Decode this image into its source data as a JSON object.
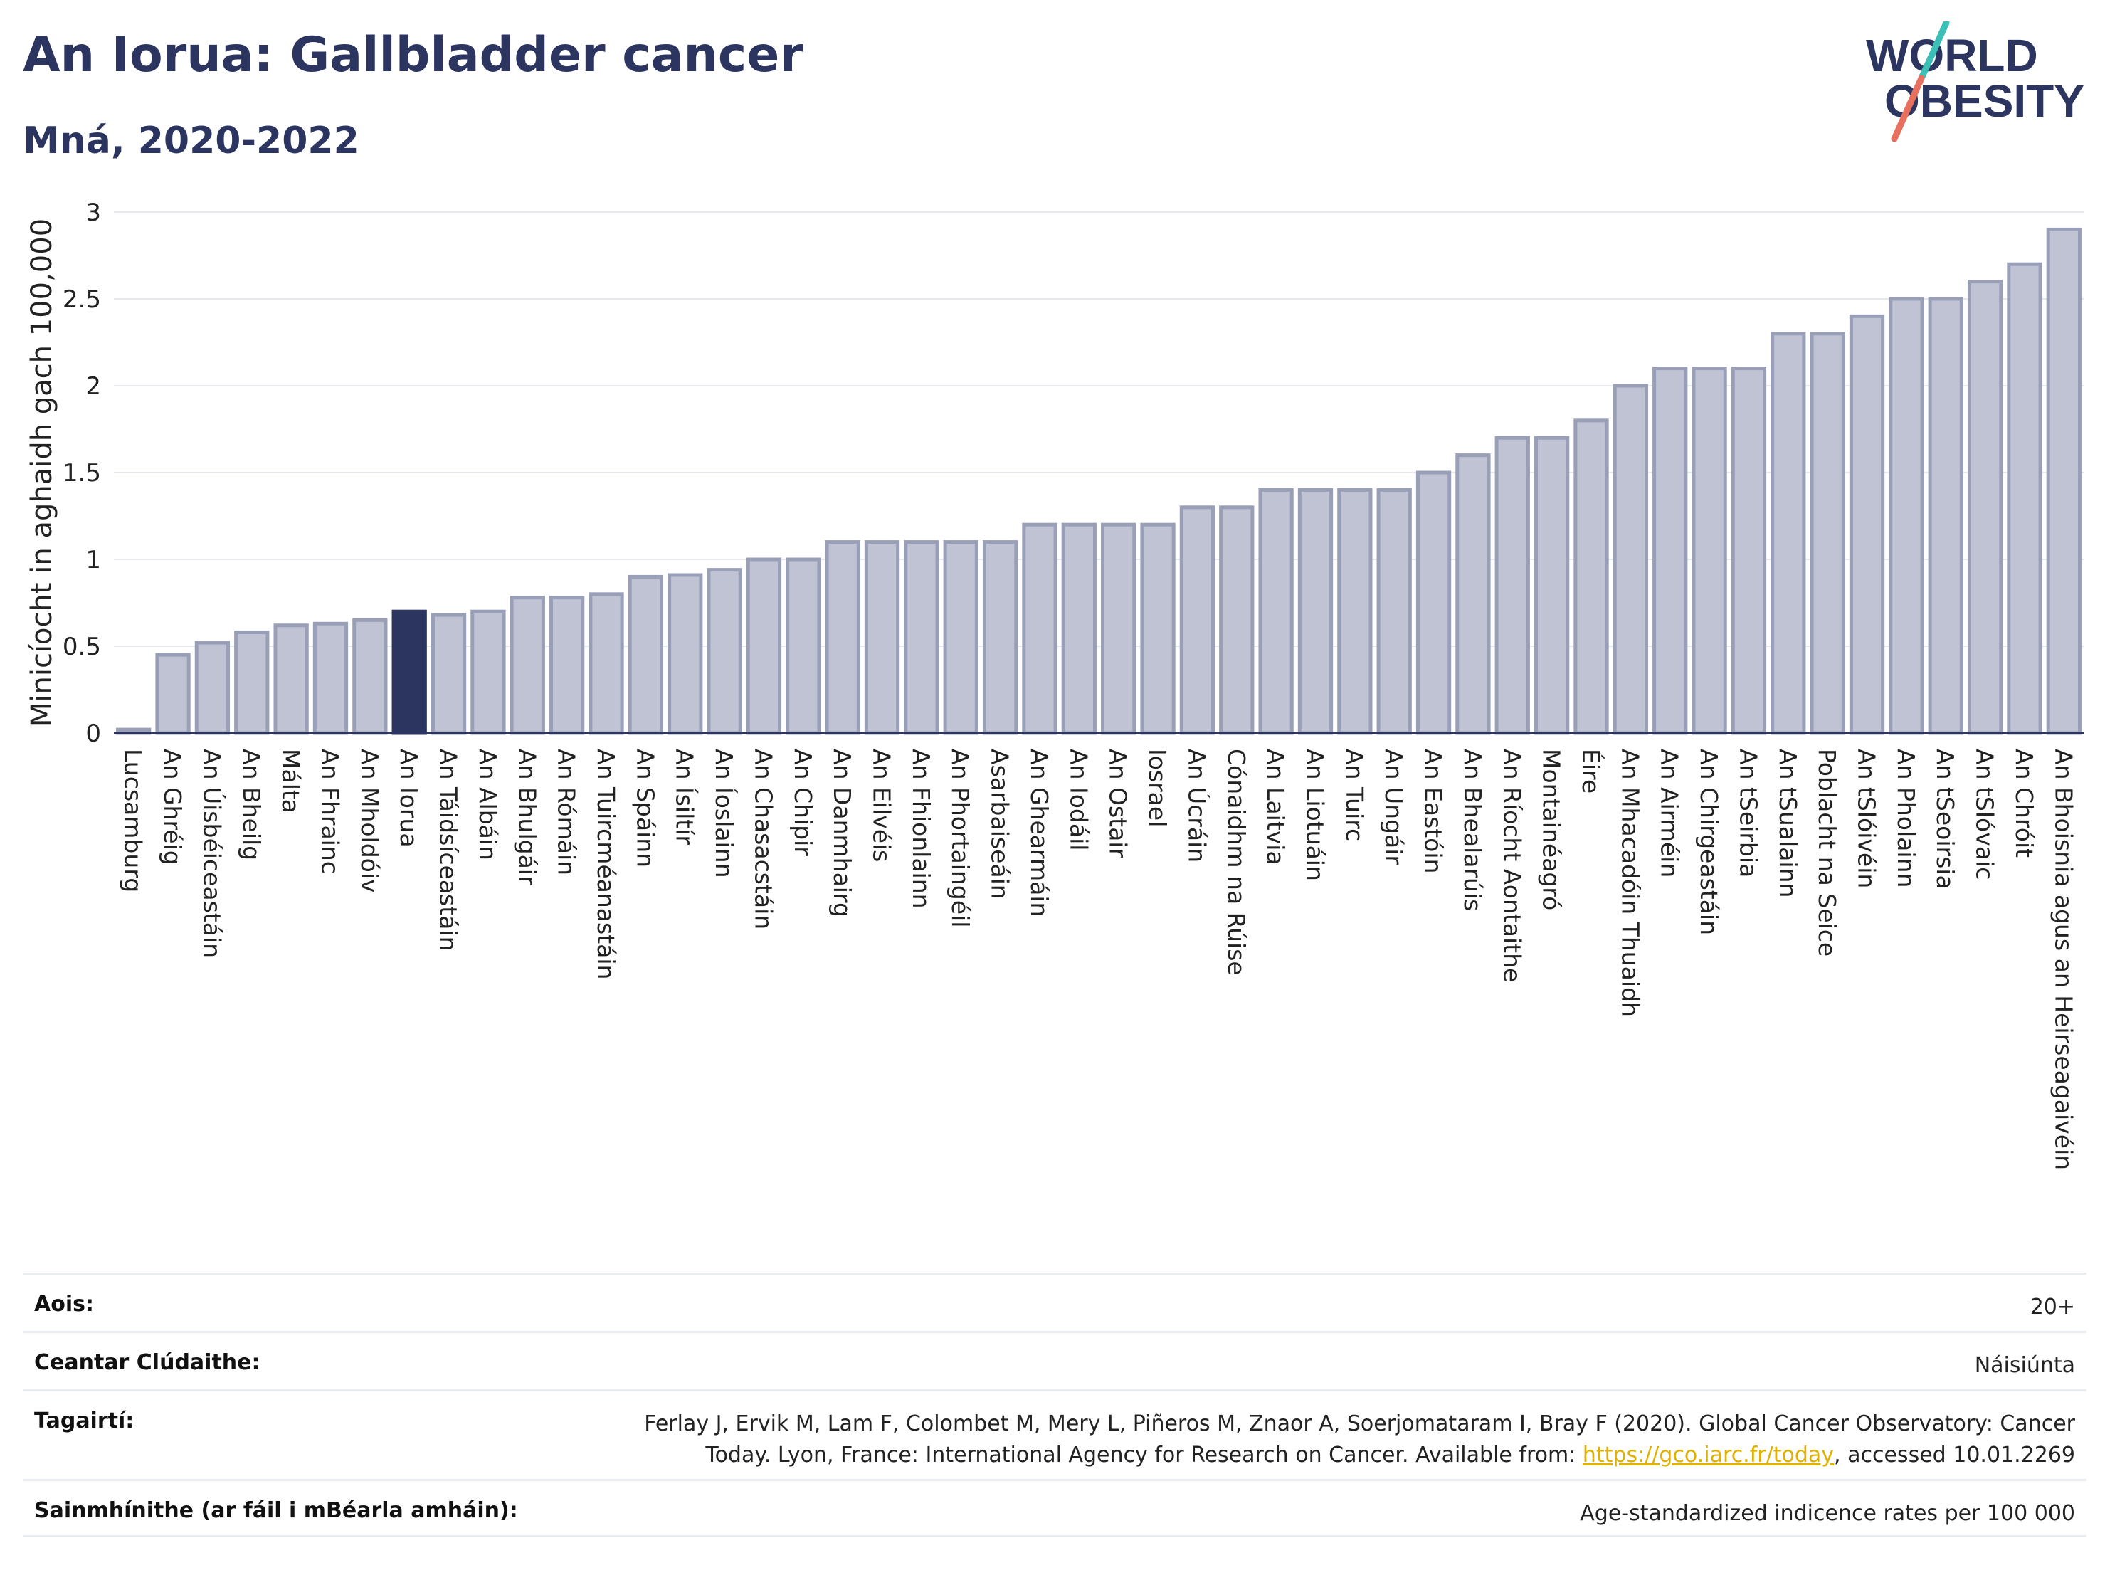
{
  "header": {
    "title": "An Iorua: Gallbladder cancer",
    "subtitle": "Mná, 2020-2022"
  },
  "logo": {
    "line1": "WORLD",
    "line2": "OBESITY",
    "accent_teal": "#3bbfb7",
    "accent_red": "#e8705f",
    "text_color": "#2b3560"
  },
  "chart_data": {
    "type": "bar",
    "ylabel": "Minicíocht in aghaidh gach 100,000",
    "ylim": [
      0,
      3
    ],
    "yticks": [
      0,
      0.5,
      1,
      1.5,
      2,
      2.5,
      3
    ],
    "ytick_labels": [
      "0",
      "0.5",
      "1",
      "1.5",
      "2",
      "2.5",
      "3"
    ],
    "grid": true,
    "highlight": "An Iorua",
    "highlight_color": "#2b3560",
    "bar_color": "#bfc3d3",
    "bar_edge_color": "#9a9fb8",
    "categories": [
      "Lucsamburg",
      "An Ghréig",
      "An Úisbéiceastáin",
      "An Bheilg",
      "Málta",
      "An Fhrainc",
      "An Mholdóiv",
      "An Iorua",
      "An Táidsíceastáin",
      "An Albáin",
      "An Bhulgáir",
      "An Rómáin",
      "An Tuircméanastáin",
      "An Spáinn",
      "An Ísiltír",
      "An Íoslainn",
      "An Chasacstáin",
      "An Chipir",
      "An Danmhairg",
      "An Eilvéis",
      "An Fhionlainn",
      "An Phortaingéil",
      "Asarbaiseáin",
      "An Ghearmáin",
      "An Iodáil",
      "An Ostair",
      "Iosrael",
      "An Úcráin",
      "Cónaidhm na Rúise",
      "An Laitvia",
      "An Liotuáin",
      "An Tuirc",
      "An Ungáir",
      "An Eastóin",
      "An Bhealarúis",
      "An Ríocht Aontaithe",
      "Montainéagró",
      "Éire",
      "An Mhacadóin Thuaidh",
      "An Airméin",
      "An Chirgeastáin",
      "An tSeirbia",
      "An tSualainn",
      "Poblacht na Seice",
      "An tSlóivéin",
      "An Pholainn",
      "An tSeoirsia",
      "An tSlóvaic",
      "An Chróit",
      "An Bhoisnia agus an Heirseagaivéin"
    ],
    "values": [
      0.02,
      0.45,
      0.52,
      0.58,
      0.62,
      0.63,
      0.65,
      0.7,
      0.68,
      0.7,
      0.78,
      0.78,
      0.8,
      0.9,
      0.91,
      0.94,
      1.0,
      1.0,
      1.1,
      1.1,
      1.1,
      1.1,
      1.1,
      1.2,
      1.2,
      1.2,
      1.2,
      1.3,
      1.3,
      1.4,
      1.4,
      1.4,
      1.4,
      1.5,
      1.6,
      1.7,
      1.7,
      1.8,
      2.0,
      2.1,
      2.1,
      2.1,
      2.3,
      2.3,
      2.4,
      2.5,
      2.5,
      2.6,
      2.7,
      2.9
    ]
  },
  "footer": {
    "age_label": "Aois:",
    "age_value": "20+",
    "area_label": "Ceantar Clúdaithe:",
    "area_value": "Náisiúnta",
    "ref_label": "Tagairtí:",
    "ref_text_1": "Ferlay J, Ervik M, Lam F, Colombet M, Mery L, Piñeros M, Znaor A, Soerjomataram I, Bray F (2020). Global Cancer Observatory: Cancer",
    "ref_text_2": "Today. Lyon, France: International Agency for Research on Cancer. Available from: ",
    "ref_link": "https://gco.iarc.fr/today",
    "ref_text_3": ", accessed 10.01.2269",
    "def_label": "Sainmhínithe (ar fáil i mBéarla amháin):",
    "def_value": "Age-standardized indicence rates per 100 000"
  }
}
